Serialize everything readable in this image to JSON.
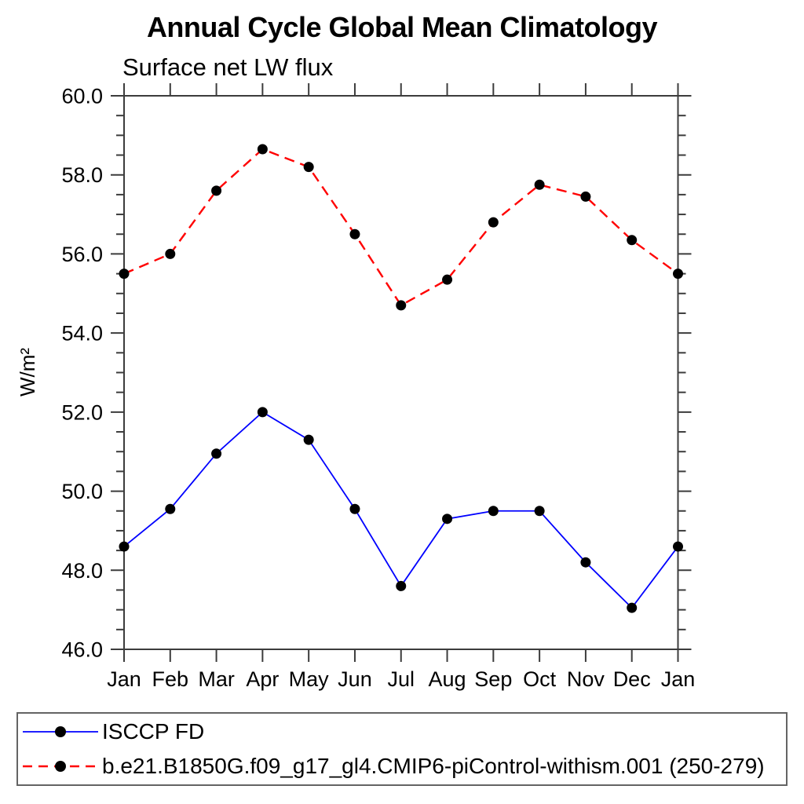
{
  "chart_data": {
    "type": "line",
    "title": "Annual Cycle Global Mean Climatology",
    "subtitle": "Surface net LW flux",
    "xlabel": "",
    "ylabel": "W/m²",
    "categories": [
      "Jan",
      "Feb",
      "Mar",
      "Apr",
      "May",
      "Jun",
      "Jul",
      "Aug",
      "Sep",
      "Oct",
      "Nov",
      "Dec",
      "Jan"
    ],
    "series": [
      {
        "name": "ISCCP FD",
        "color": "#0000ff",
        "line_style": "solid",
        "line_width": 1.8,
        "marker": "circle",
        "marker_color": "#000000",
        "values": [
          48.6,
          49.55,
          50.95,
          52.0,
          51.3,
          49.55,
          47.6,
          49.3,
          49.5,
          49.5,
          48.2,
          47.05,
          48.6
        ]
      },
      {
        "name": "b.e21.B1850G.f09_g17_gl4.CMIP6-piControl-withism.001 (250-279)",
        "color": "#ff0000",
        "line_style": "dashed",
        "line_width": 2.4,
        "marker": "circle",
        "marker_color": "#000000",
        "values": [
          55.5,
          56.0,
          57.6,
          58.65,
          58.2,
          56.5,
          54.7,
          55.35,
          56.8,
          57.75,
          57.45,
          56.35,
          55.5
        ]
      }
    ],
    "ylim": [
      46.0,
      60.0
    ],
    "ytick_major_interval": 2.0,
    "ytick_minor_interval": 0.5,
    "ytick_labels": [
      "46.0",
      "48.0",
      "50.0",
      "52.0",
      "54.0",
      "56.0",
      "58.0",
      "60.0"
    ],
    "grid": false,
    "legend_position": "bottom",
    "axis_color": "#3c3c3c",
    "marker_radius": 6.5
  }
}
